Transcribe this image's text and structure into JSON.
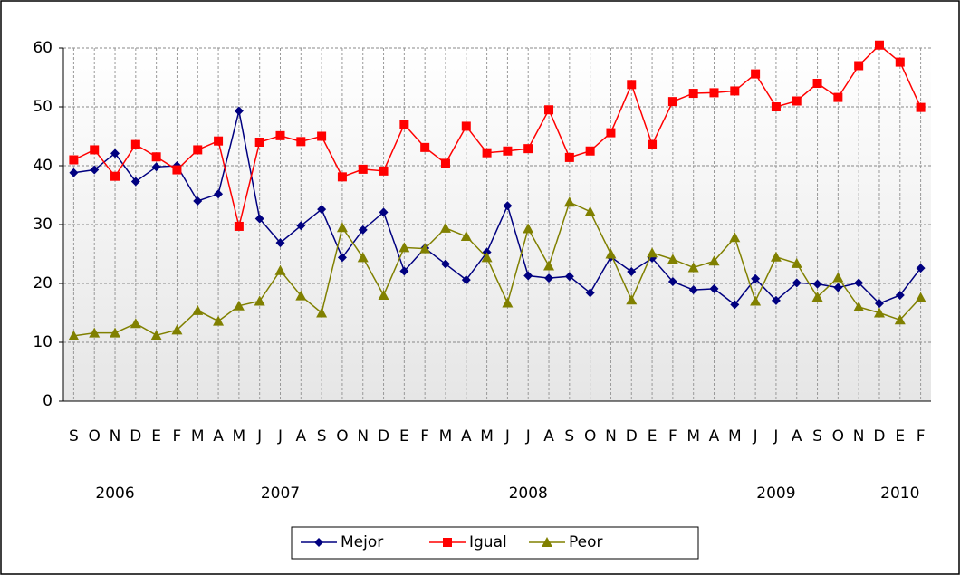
{
  "chart_data": {
    "type": "line",
    "categories": [
      "S",
      "O",
      "N",
      "D",
      "E",
      "F",
      "M",
      "A",
      "M",
      "J",
      "J",
      "A",
      "S",
      "O",
      "N",
      "D",
      "E",
      "F",
      "M",
      "A",
      "M",
      "J",
      "J",
      "A",
      "S",
      "O",
      "N",
      "D",
      "E",
      "F",
      "M",
      "A",
      "M",
      "J",
      "J",
      "A",
      "S",
      "O",
      "N",
      "D",
      "E",
      "F"
    ],
    "years": [
      null,
      null,
      "2006",
      null,
      null,
      null,
      null,
      null,
      null,
      null,
      "2007",
      null,
      null,
      null,
      null,
      null,
      null,
      null,
      null,
      null,
      null,
      null,
      "2008",
      null,
      null,
      null,
      null,
      null,
      null,
      null,
      null,
      null,
      null,
      null,
      "2009",
      null,
      null,
      null,
      null,
      null,
      "2010",
      null
    ],
    "series": [
      {
        "name": "Mejor",
        "color": "#000080",
        "marker": "diamond",
        "values": [
          38.8,
          39.3,
          42.1,
          37.3,
          39.8,
          40.0,
          34.0,
          35.2,
          49.3,
          31.0,
          26.9,
          29.8,
          32.6,
          24.4,
          29.1,
          32.1,
          22.1,
          26.0,
          23.3,
          20.6,
          25.3,
          33.2,
          21.3,
          20.9,
          21.2,
          18.4,
          24.5,
          22.0,
          24.3,
          20.3,
          18.9,
          19.1,
          16.4,
          20.8,
          17.1,
          20.1,
          19.9,
          19.3,
          20.1,
          16.6,
          18.0,
          22.6
        ]
      },
      {
        "name": "Igual",
        "color": "#ff0000",
        "marker": "square",
        "values": [
          41.0,
          42.7,
          38.2,
          43.6,
          41.5,
          39.3,
          42.7,
          44.2,
          29.7,
          44.0,
          45.1,
          44.1,
          45.0,
          38.1,
          39.4,
          39.1,
          47.0,
          43.1,
          40.4,
          46.7,
          42.2,
          42.5,
          42.9,
          49.5,
          41.4,
          42.5,
          45.6,
          53.8,
          43.6,
          50.9,
          52.3,
          52.4,
          52.7,
          55.6,
          50.0,
          51.0,
          54.0,
          51.6,
          57.0,
          60.5,
          57.6,
          49.9
        ]
      },
      {
        "name": "Peor",
        "color": "#808000",
        "marker": "triangle",
        "values": [
          11.1,
          11.6,
          11.6,
          13.2,
          11.2,
          12.1,
          15.4,
          13.6,
          16.2,
          17.0,
          22.2,
          17.9,
          15.0,
          29.5,
          24.4,
          18.0,
          26.1,
          25.9,
          29.4,
          28.0,
          24.4,
          16.7,
          29.3,
          23.0,
          33.8,
          32.2,
          25.0,
          17.2,
          25.2,
          24.1,
          22.7,
          23.8,
          27.8,
          17.0,
          24.5,
          23.4,
          17.7,
          21.0,
          16.0,
          15.0,
          13.8,
          17.6
        ]
      }
    ],
    "ylim": [
      0,
      60
    ],
    "yticks": [
      0,
      10,
      20,
      30,
      40,
      50,
      60
    ],
    "grid": true,
    "legend": "bottom"
  }
}
